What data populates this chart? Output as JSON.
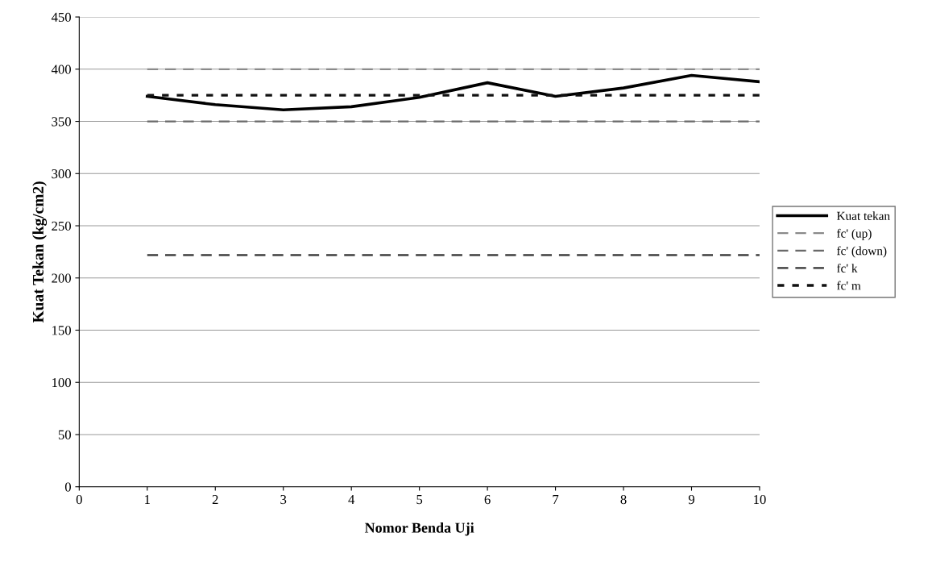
{
  "chart_data": {
    "type": "line",
    "xlabel": "Nomor Benda Uji",
    "ylabel": "Kuat Tekan (kg/cm2)",
    "x": [
      1,
      2,
      3,
      4,
      5,
      6,
      7,
      8,
      9,
      10
    ],
    "series": [
      {
        "name": "Kuat tekan",
        "color": "#000000",
        "line_style": "solid",
        "values": [
          374,
          366,
          361,
          364,
          373,
          387,
          374,
          382,
          394,
          388
        ]
      },
      {
        "name": "fc' (up)",
        "color": "#8a8a8a",
        "line_style": "dashed",
        "values": [
          400,
          400,
          400,
          400,
          400,
          400,
          400,
          400,
          400,
          400
        ]
      },
      {
        "name": "fc' (down)",
        "color": "#6a6a6a",
        "line_style": "dashed",
        "values": [
          350,
          350,
          350,
          350,
          350,
          350,
          350,
          350,
          350,
          350
        ]
      },
      {
        "name": "fc' k",
        "color": "#333333",
        "line_style": "dashed",
        "values": [
          222,
          222,
          222,
          222,
          222,
          222,
          222,
          222,
          222,
          222
        ]
      },
      {
        "name": "fc' m",
        "color": "#111111",
        "line_style": "dotted",
        "values": [
          375,
          375,
          375,
          375,
          375,
          375,
          375,
          375,
          375,
          375
        ]
      }
    ],
    "xlim": [
      0,
      10
    ],
    "xticks": [
      0,
      1,
      2,
      3,
      4,
      5,
      6,
      7,
      8,
      9,
      10
    ],
    "ylim": [
      0,
      450
    ],
    "yticks": [
      0,
      50,
      100,
      150,
      200,
      250,
      300,
      350,
      400,
      450
    ],
    "grid": "y",
    "legend": "right",
    "marker": "none"
  }
}
